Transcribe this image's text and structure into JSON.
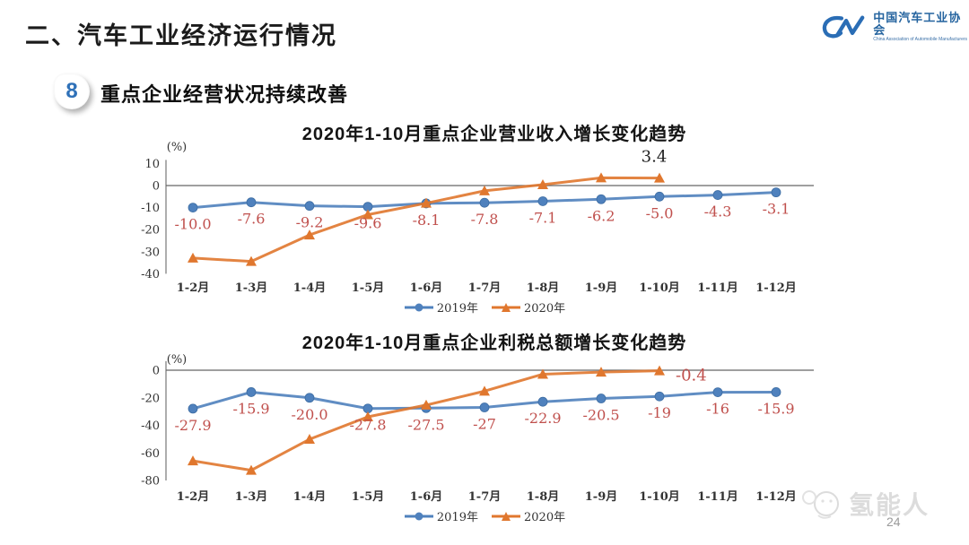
{
  "slide": {
    "section_title": "二、汽车工业经济运行情况",
    "badge_number": "8",
    "subtitle": "重点企业经营状况持续改善",
    "page_number": "24"
  },
  "logo": {
    "name_cn": "中国汽车工业协会",
    "name_en": "China Association of Automobile Manufacturers"
  },
  "watermark": {
    "text": "氢能人"
  },
  "colors": {
    "blue_series": "#4f81bd",
    "orange_series": "#e0772e",
    "data_label_red": "#c0504d",
    "logo_blue": "#2a6db5",
    "axis_gray": "#666666"
  },
  "chart_data": [
    {
      "type": "line",
      "title": "2020年1-10月重点企业营业收入增长变化趋势",
      "unit_label": "(%)",
      "categories": [
        "1-2月",
        "1-3月",
        "1-4月",
        "1-5月",
        "1-6月",
        "1-7月",
        "1-8月",
        "1-9月",
        "1-10月",
        "1-11月",
        "1-12月"
      ],
      "ylim": [
        -40,
        10
      ],
      "yticks": [
        10,
        0,
        -10,
        -20,
        -30,
        -40
      ],
      "grid": "zero-line-only",
      "legend_position": "bottom",
      "series": [
        {
          "name": "2019年",
          "color": "#4f81bd",
          "marker": "circle",
          "values": [
            -10.0,
            -7.6,
            -9.2,
            -9.6,
            -8.1,
            -7.8,
            -7.1,
            -6.2,
            -5.0,
            -4.3,
            -3.1
          ]
        },
        {
          "name": "2020年",
          "color": "#e0772e",
          "marker": "triangle",
          "values": [
            -32.9,
            -34.4,
            -22.4,
            -13.2,
            -8.0,
            -2.4,
            0.4,
            3.5,
            3.4
          ]
        }
      ],
      "data_labels": {
        "series": "2019年",
        "color": "#c0504d",
        "values": [
          "-10.0",
          "-7.6",
          "-9.2",
          "-9.6",
          "-8.1",
          "-7.8",
          "-7.1",
          "-6.2",
          "-5.0",
          "-4.3",
          "-3.1"
        ]
      },
      "annotation": {
        "text": "3.4",
        "series": "2020年",
        "point_index": 8,
        "position": "above",
        "color": "#222222"
      }
    },
    {
      "type": "line",
      "title": "2020年1-10月重点企业利税总额增长变化趋势",
      "unit_label": "(%)",
      "categories": [
        "1-2月",
        "1-3月",
        "1-4月",
        "1-5月",
        "1-6月",
        "1-7月",
        "1-8月",
        "1-9月",
        "1-10月",
        "1-11月",
        "1-12月"
      ],
      "ylim": [
        -80,
        4
      ],
      "yticks": [
        0,
        -20,
        -40,
        -60,
        -80
      ],
      "grid": "zero-line-only",
      "legend_position": "bottom",
      "series": [
        {
          "name": "2019年",
          "color": "#4f81bd",
          "marker": "circle",
          "values": [
            -27.9,
            -15.9,
            -20.0,
            -27.8,
            -27.5,
            -27.0,
            -22.9,
            -20.5,
            -19.0,
            -16.0,
            -15.9
          ]
        },
        {
          "name": "2020年",
          "color": "#e0772e",
          "marker": "triangle",
          "values": [
            -65.8,
            -72.6,
            -50.1,
            -33.8,
            -25.3,
            -15.2,
            -2.9,
            -1.4,
            -0.4
          ]
        }
      ],
      "data_labels": {
        "series": "2019年",
        "color": "#c0504d",
        "values": [
          "-27.9",
          "-15.9",
          "-20.0",
          "-27.8",
          "-27.5",
          "-27",
          "-22.9",
          "-20.5",
          "-19",
          "-16",
          "-15.9"
        ]
      },
      "annotation": {
        "text": "-0.4",
        "series": "2020年",
        "point_index": 8,
        "position": "right-below",
        "color": "#c0504d"
      }
    }
  ]
}
